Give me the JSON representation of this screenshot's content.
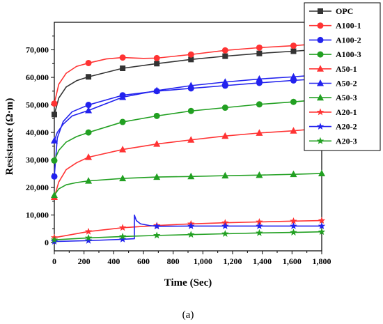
{
  "chart_data": {
    "type": "line",
    "xlabel": "Time (Sec)",
    "ylabel": "Resistance (Ω·m)",
    "caption": "(a)",
    "xlim": [
      0,
      1800
    ],
    "ylim": [
      -3000,
      80000
    ],
    "xticks": [
      0,
      200,
      400,
      600,
      800,
      1000,
      1200,
      1400,
      1600,
      1800
    ],
    "xtick_labels": [
      "0",
      "200",
      "400",
      "600",
      "800",
      "1,000",
      "1,200",
      "1,400",
      "1,600",
      "1,800"
    ],
    "yticks": [
      0,
      10000,
      20000,
      30000,
      40000,
      50000,
      60000,
      70000
    ],
    "ytick_labels": [
      "0",
      "10,000",
      "20,000",
      "30,000",
      "40,000",
      "50,000",
      "60,000",
      "70,000"
    ],
    "legend_position": "top-right",
    "marker_x": [
      0,
      230,
      460,
      690,
      920,
      1150,
      1380,
      1610,
      1800
    ],
    "series": [
      {
        "name": "OPC",
        "color": "#333333",
        "marker": "square",
        "x": [
          0,
          30,
          80,
          150,
          230,
          460,
          690,
          920,
          1150,
          1380,
          1610,
          1800
        ],
        "y": [
          46500,
          52500,
          56500,
          58800,
          60200,
          63300,
          65000,
          66500,
          67700,
          68700,
          69500,
          70200
        ]
      },
      {
        "name": "A100-1",
        "color": "#ff3333",
        "marker": "circle",
        "x": [
          0,
          30,
          80,
          150,
          230,
          350,
          460,
          600,
          690,
          920,
          1150,
          1380,
          1610,
          1800
        ],
        "y": [
          50500,
          57500,
          61500,
          64000,
          65200,
          66700,
          67200,
          66900,
          67000,
          68300,
          69800,
          70800,
          71500,
          72300
        ]
      },
      {
        "name": "A100-2",
        "color": "#2222ee",
        "marker": "circle",
        "x": [
          0,
          20,
          60,
          120,
          230,
          460,
          690,
          920,
          1150,
          1380,
          1610,
          1800
        ],
        "y": [
          24000,
          38000,
          44000,
          47500,
          50000,
          53500,
          55000,
          56000,
          57000,
          58000,
          58900,
          59500
        ]
      },
      {
        "name": "A100-3",
        "color": "#22a022",
        "marker": "circle",
        "x": [
          0,
          30,
          80,
          150,
          230,
          460,
          690,
          920,
          1150,
          1380,
          1610,
          1800
        ],
        "y": [
          29800,
          33500,
          36500,
          38500,
          40000,
          43800,
          46000,
          47800,
          49000,
          50200,
          51100,
          52000
        ]
      },
      {
        "name": "A50-1",
        "color": "#ff3333",
        "marker": "triangle",
        "x": [
          0,
          30,
          80,
          150,
          230,
          460,
          690,
          920,
          1150,
          1380,
          1610,
          1800
        ],
        "y": [
          16500,
          22000,
          26500,
          29000,
          31000,
          33800,
          35800,
          37300,
          38700,
          39800,
          40600,
          41500
        ]
      },
      {
        "name": "A50-2",
        "color": "#2222ee",
        "marker": "triangle",
        "x": [
          0,
          20,
          60,
          120,
          230,
          460,
          690,
          920,
          1150,
          1380,
          1610,
          1800
        ],
        "y": [
          37000,
          40000,
          43000,
          46000,
          48000,
          52800,
          55200,
          57000,
          58300,
          59400,
          60200,
          61000
        ]
      },
      {
        "name": "A50-3",
        "color": "#22a022",
        "marker": "triangle",
        "x": [
          0,
          30,
          80,
          150,
          230,
          460,
          690,
          920,
          1150,
          1380,
          1610,
          1800
        ],
        "y": [
          17200,
          19500,
          21000,
          21800,
          22400,
          23300,
          23800,
          24000,
          24300,
          24500,
          24800,
          25100
        ]
      },
      {
        "name": "A20-1",
        "color": "#ff3333",
        "marker": "star",
        "x": [
          0,
          230,
          460,
          690,
          920,
          1150,
          1380,
          1610,
          1800
        ],
        "y": [
          1800,
          4000,
          5400,
          6200,
          6800,
          7200,
          7500,
          7800,
          8000
        ]
      },
      {
        "name": "A20-2",
        "color": "#2222ee",
        "marker": "star",
        "x": [
          0,
          230,
          460,
          539,
          539,
          552,
          580,
          640,
          690,
          920,
          1150,
          1380,
          1610,
          1800
        ],
        "y": [
          400,
          700,
          1200,
          1400,
          10000,
          8000,
          6800,
          6200,
          5900,
          6000,
          6000,
          6000,
          6000,
          6000
        ]
      },
      {
        "name": "A20-3",
        "color": "#22a022",
        "marker": "star",
        "x": [
          0,
          230,
          460,
          690,
          920,
          1150,
          1380,
          1610,
          1800
        ],
        "y": [
          1000,
          1700,
          2200,
          2600,
          2900,
          3200,
          3500,
          3700,
          3900
        ]
      }
    ]
  }
}
